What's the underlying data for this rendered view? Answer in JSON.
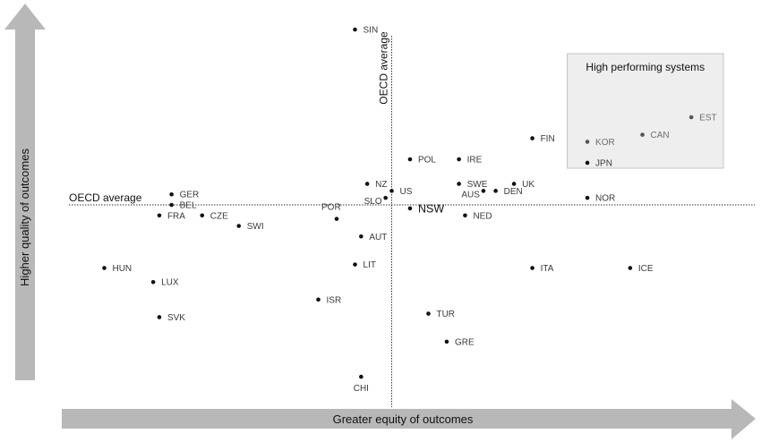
{
  "chart_data": {
    "type": "scatter",
    "title": "",
    "xlabel": "Greater equity of outcomes",
    "ylabel": "Higher quality of outcomes",
    "xlim": [
      0,
      100
    ],
    "ylim": [
      0,
      100
    ],
    "grid": false,
    "reference_lines": {
      "x": {
        "value": 50,
        "label": "OECD average"
      },
      "y": {
        "value": 50,
        "label": "OECD average"
      }
    },
    "highlight_region": {
      "label": "High performing systems",
      "x": [
        79,
        100
      ],
      "y": [
        64,
        100
      ]
    },
    "points": [
      {
        "label": "SIN",
        "x": 44,
        "y": 100
      },
      {
        "label": "EST",
        "x": 99,
        "y": 75
      },
      {
        "label": "CAN",
        "x": 91,
        "y": 70
      },
      {
        "label": "FIN",
        "x": 73,
        "y": 69
      },
      {
        "label": "KOR",
        "x": 82,
        "y": 68
      },
      {
        "label": "JPN",
        "x": 82,
        "y": 62
      },
      {
        "label": "POL",
        "x": 53,
        "y": 63
      },
      {
        "label": "IRE",
        "x": 61,
        "y": 63
      },
      {
        "label": "NZ",
        "x": 46,
        "y": 56
      },
      {
        "label": "SWE",
        "x": 61,
        "y": 56
      },
      {
        "label": "UK",
        "x": 70,
        "y": 56
      },
      {
        "label": "DEN",
        "x": 67,
        "y": 54
      },
      {
        "label": "AUS",
        "x": 65,
        "y": 54
      },
      {
        "label": "US",
        "x": 50,
        "y": 54
      },
      {
        "label": "SLO",
        "x": 49,
        "y": 52
      },
      {
        "label": "GER",
        "x": 14,
        "y": 53
      },
      {
        "label": "BEL",
        "x": 14,
        "y": 50
      },
      {
        "label": "NOR",
        "x": 82,
        "y": 52
      },
      {
        "label": "NSW",
        "x": 53,
        "y": 49
      },
      {
        "label": "NED",
        "x": 62,
        "y": 47
      },
      {
        "label": "FRA",
        "x": 12,
        "y": 47
      },
      {
        "label": "CZE",
        "x": 19,
        "y": 47
      },
      {
        "label": "POR",
        "x": 41,
        "y": 46
      },
      {
        "label": "SWI",
        "x": 25,
        "y": 44
      },
      {
        "label": "AUT",
        "x": 45,
        "y": 41
      },
      {
        "label": "HUN",
        "x": 3,
        "y": 32
      },
      {
        "label": "LIT",
        "x": 44,
        "y": 33
      },
      {
        "label": "ITA",
        "x": 73,
        "y": 32
      },
      {
        "label": "ICE",
        "x": 89,
        "y": 32
      },
      {
        "label": "LUX",
        "x": 11,
        "y": 28
      },
      {
        "label": "ISR",
        "x": 38,
        "y": 23
      },
      {
        "label": "SVK",
        "x": 12,
        "y": 18
      },
      {
        "label": "TUR",
        "x": 56,
        "y": 19
      },
      {
        "label": "GRE",
        "x": 59,
        "y": 11
      },
      {
        "label": "CHI",
        "x": 45,
        "y": 1
      }
    ]
  }
}
